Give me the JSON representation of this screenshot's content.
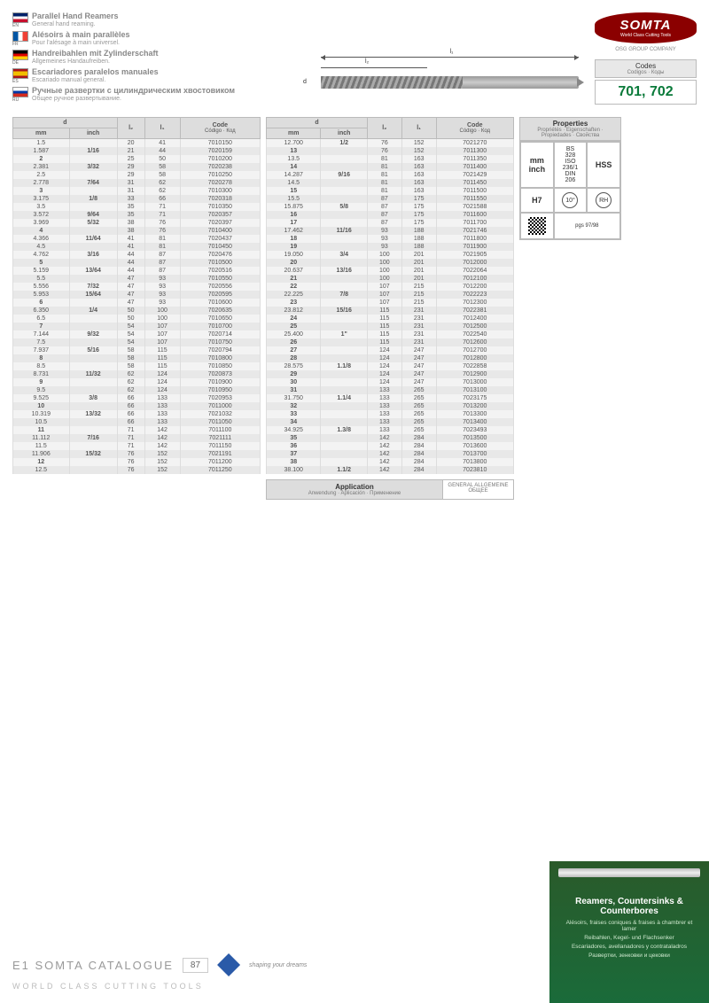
{
  "languages": [
    {
      "code": "EN",
      "title": "Parallel Hand Reamers",
      "sub": "General hand reaming."
    },
    {
      "code": "FR",
      "title": "Alésoirs à main parallèles",
      "sub": "Pour l'alésage à main universel."
    },
    {
      "code": "DE",
      "title": "Handreibahlen mit Zylinderschaft",
      "sub": "Allgemeines Handaufreiben."
    },
    {
      "code": "ES",
      "title": "Escariadores paralelos manuales",
      "sub": "Escariado manual general."
    },
    {
      "code": "RU",
      "title": "Ручные развертки с цилиндрическим хвостовиком",
      "sub": "Общее ручное развертывание."
    }
  ],
  "brand": {
    "name": "SOMTA",
    "tag": "World Class Cutting Tools",
    "group": "OSG GROUP COMPANY"
  },
  "codes": {
    "label": "Codes",
    "subs": "Codigos · Коды",
    "value": "701, 702"
  },
  "diagram": {
    "d": "d",
    "l1": "l₁",
    "l2": "l₂"
  },
  "tableHead": {
    "d": "d",
    "mm": "mm",
    "inch": "inch",
    "l2": "l₂",
    "l1": "l₁",
    "code": "Code",
    "codesub": "Código · Код"
  },
  "table1": [
    [
      "1.5",
      "",
      "20",
      "41",
      "7010150"
    ],
    [
      "1.587",
      "1/16",
      "21",
      "44",
      "7020159"
    ],
    [
      "2",
      "",
      "25",
      "50",
      "7010200"
    ],
    [
      "2.381",
      "3/32",
      "29",
      "58",
      "7020238"
    ],
    [
      "2.5",
      "",
      "29",
      "58",
      "7010250"
    ],
    [
      "2.778",
      "7/64",
      "31",
      "62",
      "7020278"
    ],
    [
      "3",
      "",
      "31",
      "62",
      "7010300"
    ],
    [
      "3.175",
      "1/8",
      "33",
      "66",
      "7020318"
    ],
    [
      "3.5",
      "",
      "35",
      "71",
      "7010350"
    ],
    [
      "3.572",
      "9/64",
      "35",
      "71",
      "7020357"
    ],
    [
      "3.969",
      "5/32",
      "38",
      "76",
      "7020397"
    ],
    [
      "4",
      "",
      "38",
      "76",
      "7010400"
    ],
    [
      "4.366",
      "11/64",
      "41",
      "81",
      "7020437"
    ],
    [
      "4.5",
      "",
      "41",
      "81",
      "7010450"
    ],
    [
      "4.762",
      "3/16",
      "44",
      "87",
      "7020476"
    ],
    [
      "5",
      "",
      "44",
      "87",
      "7010500"
    ],
    [
      "5.159",
      "13/64",
      "44",
      "87",
      "7020516"
    ],
    [
      "5.5",
      "",
      "47",
      "93",
      "7010550"
    ],
    [
      "5.556",
      "7/32",
      "47",
      "93",
      "7020556"
    ],
    [
      "5.953",
      "15/64",
      "47",
      "93",
      "7020595"
    ],
    [
      "6",
      "",
      "47",
      "93",
      "7010600"
    ],
    [
      "6.350",
      "1/4",
      "50",
      "100",
      "7020635"
    ],
    [
      "6.5",
      "",
      "50",
      "100",
      "7010650"
    ],
    [
      "7",
      "",
      "54",
      "107",
      "7010700"
    ],
    [
      "7.144",
      "9/32",
      "54",
      "107",
      "7020714"
    ],
    [
      "7.5",
      "",
      "54",
      "107",
      "7010750"
    ],
    [
      "7.937",
      "5/16",
      "58",
      "115",
      "7020794"
    ],
    [
      "8",
      "",
      "58",
      "115",
      "7010800"
    ],
    [
      "8.5",
      "",
      "58",
      "115",
      "7010850"
    ],
    [
      "8.731",
      "11/32",
      "62",
      "124",
      "7020873"
    ],
    [
      "9",
      "",
      "62",
      "124",
      "7010900"
    ],
    [
      "9.5",
      "",
      "62",
      "124",
      "7010950"
    ],
    [
      "9.525",
      "3/8",
      "66",
      "133",
      "7020953"
    ],
    [
      "10",
      "",
      "66",
      "133",
      "7011000"
    ],
    [
      "10.319",
      "13/32",
      "66",
      "133",
      "7021032"
    ],
    [
      "10.5",
      "",
      "66",
      "133",
      "7011050"
    ],
    [
      "11",
      "",
      "71",
      "142",
      "7011100"
    ],
    [
      "11.112",
      "7/16",
      "71",
      "142",
      "7021111"
    ],
    [
      "11.5",
      "",
      "71",
      "142",
      "7011150"
    ],
    [
      "11.906",
      "15/32",
      "76",
      "152",
      "7021191"
    ],
    [
      "12",
      "",
      "76",
      "152",
      "7011200"
    ],
    [
      "12.5",
      "",
      "76",
      "152",
      "7011250"
    ]
  ],
  "table2": [
    [
      "12.700",
      "1/2",
      "76",
      "152",
      "7021270"
    ],
    [
      "13",
      "",
      "76",
      "152",
      "7011300"
    ],
    [
      "13.5",
      "",
      "81",
      "163",
      "7011350"
    ],
    [
      "14",
      "",
      "81",
      "163",
      "7011400"
    ],
    [
      "14.287",
      "9/16",
      "81",
      "163",
      "7021429"
    ],
    [
      "14.5",
      "",
      "81",
      "163",
      "7011450"
    ],
    [
      "15",
      "",
      "81",
      "163",
      "7011500"
    ],
    [
      "15.5",
      "",
      "87",
      "175",
      "7011550"
    ],
    [
      "15.875",
      "5/8",
      "87",
      "175",
      "7021588"
    ],
    [
      "16",
      "",
      "87",
      "175",
      "7011600"
    ],
    [
      "17",
      "",
      "87",
      "175",
      "7011700"
    ],
    [
      "17.462",
      "11/16",
      "93",
      "188",
      "7021746"
    ],
    [
      "18",
      "",
      "93",
      "188",
      "7011800"
    ],
    [
      "19",
      "",
      "93",
      "188",
      "7011900"
    ],
    [
      "19.050",
      "3/4",
      "100",
      "201",
      "7021905"
    ],
    [
      "20",
      "",
      "100",
      "201",
      "7012000"
    ],
    [
      "20.637",
      "13/16",
      "100",
      "201",
      "7022064"
    ],
    [
      "21",
      "",
      "100",
      "201",
      "7012100"
    ],
    [
      "22",
      "",
      "107",
      "215",
      "7012200"
    ],
    [
      "22.225",
      "7/8",
      "107",
      "215",
      "7022223"
    ],
    [
      "23",
      "",
      "107",
      "215",
      "7012300"
    ],
    [
      "23.812",
      "15/16",
      "115",
      "231",
      "7022381"
    ],
    [
      "24",
      "",
      "115",
      "231",
      "7012400"
    ],
    [
      "25",
      "",
      "115",
      "231",
      "7012500"
    ],
    [
      "25.400",
      "1\"",
      "115",
      "231",
      "7022540"
    ],
    [
      "26",
      "",
      "115",
      "231",
      "7012600"
    ],
    [
      "27",
      "",
      "124",
      "247",
      "7012700"
    ],
    [
      "28",
      "",
      "124",
      "247",
      "7012800"
    ],
    [
      "28.575",
      "1.1/8",
      "124",
      "247",
      "7022858"
    ],
    [
      "29",
      "",
      "124",
      "247",
      "7012900"
    ],
    [
      "30",
      "",
      "124",
      "247",
      "7013000"
    ],
    [
      "31",
      "",
      "133",
      "265",
      "7013100"
    ],
    [
      "31.750",
      "1.1/4",
      "133",
      "265",
      "7023175"
    ],
    [
      "32",
      "",
      "133",
      "265",
      "7013200"
    ],
    [
      "33",
      "",
      "133",
      "265",
      "7013300"
    ],
    [
      "34",
      "",
      "133",
      "265",
      "7013400"
    ],
    [
      "34.925",
      "1.3/8",
      "133",
      "265",
      "7023493"
    ],
    [
      "35",
      "",
      "142",
      "284",
      "7013500"
    ],
    [
      "36",
      "",
      "142",
      "284",
      "7013600"
    ],
    [
      "37",
      "",
      "142",
      "284",
      "7013700"
    ],
    [
      "38",
      "",
      "142",
      "284",
      "7013800"
    ],
    [
      "38.100",
      "1.1/2",
      "142",
      "284",
      "7023810"
    ]
  ],
  "properties": {
    "label": "Properties",
    "subs": "Propriétés · Eigenschaften · Propiedades · Свойства",
    "cells": [
      [
        "mm inch",
        "BS 328 ISO 236/1 DIN 206",
        "HSS"
      ],
      [
        "H7",
        "10°",
        "RH"
      ]
    ],
    "pgs": "pgs 97/98"
  },
  "application": {
    "label": "Application",
    "subs": "Anwendung · Aplicación · Применение",
    "value": "GENERAL ALLGEMEINE ОБЩЕЕ"
  },
  "footer": {
    "catalogue": "E1 SOMTA CATALOGUE",
    "sub": "WORLD CLASS CUTTING TOOLS",
    "page": "87",
    "shaping": "shaping your dreams"
  },
  "green": {
    "title": "Reamers, Countersinks & Counterbores",
    "lines": [
      "Alésoirs, fraises coniques & fraises à chambrer et lamer",
      "Reibahlen, Kegel- und Flachsenker",
      "Escariadores, avellanadores y contrataladros",
      "Развертки, зенковки и цековки"
    ]
  }
}
